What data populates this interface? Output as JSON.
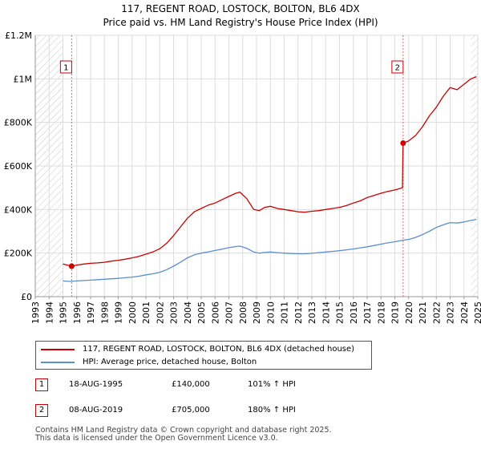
{
  "title_line1": "117, REGENT ROAD, LOSTOCK, BOLTON, BL6 4DX",
  "title_line2": "Price paid vs. HM Land Registry's House Price Index (HPI)",
  "colors": {
    "property": "#cc0000",
    "hpi": "#5b8fd0",
    "marker_box": "#cc0000",
    "grid": "#dddddd"
  },
  "legend": {
    "property_label": "117, REGENT ROAD, LOSTOCK, BOLTON, BL6 4DX (detached house)",
    "hpi_label": "HPI: Average price, detached house, Bolton"
  },
  "sales": [
    {
      "num": "1",
      "date": "18-AUG-1995",
      "price": "£140,000",
      "hpi": "101% ↑ HPI"
    },
    {
      "num": "2",
      "date": "08-AUG-2019",
      "price": "£705,000",
      "hpi": "180% ↑ HPI"
    }
  ],
  "footer": {
    "line1": "Contains HM Land Registry data © Crown copyright and database right 2025.",
    "line2": "This data is licensed under the Open Government Licence v3.0."
  },
  "chart_data": {
    "type": "line",
    "xlim": [
      1993,
      2025
    ],
    "ylim": [
      0,
      1200000
    ],
    "ytick_values": [
      0,
      200000,
      400000,
      600000,
      800000,
      1000000,
      1200000
    ],
    "ytick_labels": [
      "£0",
      "£200K",
      "£400K",
      "£600K",
      "£800K",
      "£1M",
      "£1.2M"
    ],
    "xtick_labels": [
      "1993",
      "1994",
      "1995",
      "1996",
      "1997",
      "1998",
      "1999",
      "2000",
      "2001",
      "2002",
      "2003",
      "2004",
      "2005",
      "2006",
      "2007",
      "2008",
      "2009",
      "2010",
      "2011",
      "2012",
      "2013",
      "2014",
      "2015",
      "2016",
      "2017",
      "2018",
      "2019",
      "2020",
      "2021",
      "2022",
      "2023",
      "2024",
      "2025"
    ],
    "hatch_before": 1995.0,
    "hatch_after": 2024.5,
    "sale_markers": [
      {
        "label": "1",
        "x": 1995.63,
        "y": 140000
      },
      {
        "label": "2",
        "x": 2019.6,
        "y": 705000
      }
    ],
    "series": [
      {
        "name": "117, REGENT ROAD, LOSTOCK, BOLTON, BL6 4DX (detached house)",
        "x": [
          1995.0,
          1995.63,
          1996.0,
          1996.5,
          1997,
          1997.5,
          1998,
          1998.5,
          1999,
          1999.5,
          2000,
          2000.5,
          2001,
          2001.5,
          2002,
          2002.5,
          2003,
          2003.5,
          2004,
          2004.5,
          2005,
          2005.5,
          2006,
          2006.5,
          2007,
          2007.5,
          2007.8,
          2008.3,
          2008.8,
          2009.2,
          2009.6,
          2010,
          2010.5,
          2011,
          2011.5,
          2012,
          2012.5,
          2013,
          2013.5,
          2014,
          2014.5,
          2015,
          2015.5,
          2016,
          2016.5,
          2017,
          2017.5,
          2018,
          2018.5,
          2019,
          2019.55,
          2019.6,
          2020,
          2020.5,
          2021,
          2021.5,
          2022,
          2022.5,
          2023,
          2023.5,
          2024,
          2024.5,
          2024.9
        ],
        "y": [
          150000,
          140000,
          145000,
          150000,
          153000,
          155000,
          158000,
          163000,
          167000,
          172000,
          178000,
          185000,
          195000,
          205000,
          220000,
          245000,
          280000,
          320000,
          360000,
          390000,
          405000,
          420000,
          430000,
          445000,
          460000,
          475000,
          480000,
          450000,
          400000,
          395000,
          410000,
          415000,
          405000,
          400000,
          395000,
          390000,
          388000,
          392000,
          395000,
          400000,
          405000,
          410000,
          418000,
          430000,
          440000,
          455000,
          465000,
          475000,
          483000,
          490000,
          500000,
          705000,
          715000,
          740000,
          780000,
          830000,
          870000,
          920000,
          960000,
          950000,
          975000,
          1000000,
          1010000
        ]
      },
      {
        "name": "HPI: Average price, detached house, Bolton",
        "x": [
          1995.0,
          1995.5,
          1996,
          1996.5,
          1997,
          1997.5,
          1998,
          1998.5,
          1999,
          1999.5,
          2000,
          2000.5,
          2001,
          2001.5,
          2002,
          2002.5,
          2003,
          2003.5,
          2004,
          2004.5,
          2005,
          2005.5,
          2006,
          2006.5,
          2007,
          2007.5,
          2007.8,
          2008.3,
          2008.8,
          2009.2,
          2009.6,
          2010,
          2010.5,
          2011,
          2011.5,
          2012,
          2012.5,
          2013,
          2013.5,
          2014,
          2014.5,
          2015,
          2015.5,
          2016,
          2016.5,
          2017,
          2017.5,
          2018,
          2018.5,
          2019,
          2019.5,
          2020,
          2020.5,
          2021,
          2021.5,
          2022,
          2022.5,
          2023,
          2023.5,
          2024,
          2024.5,
          2024.9
        ],
        "y": [
          72000,
          70000,
          72000,
          74000,
          76000,
          78000,
          80000,
          82000,
          84000,
          87000,
          90000,
          94000,
          100000,
          105000,
          112000,
          124000,
          140000,
          158000,
          178000,
          192000,
          200000,
          205000,
          212000,
          218000,
          225000,
          230000,
          232000,
          222000,
          205000,
          200000,
          203000,
          205000,
          202000,
          200000,
          198000,
          197000,
          197000,
          199000,
          202000,
          205000,
          208000,
          211000,
          215000,
          219000,
          224000,
          229000,
          235000,
          241000,
          247000,
          252000,
          258000,
          263000,
          272000,
          285000,
          300000,
          318000,
          330000,
          340000,
          338000,
          343000,
          350000,
          355000
        ]
      }
    ]
  }
}
